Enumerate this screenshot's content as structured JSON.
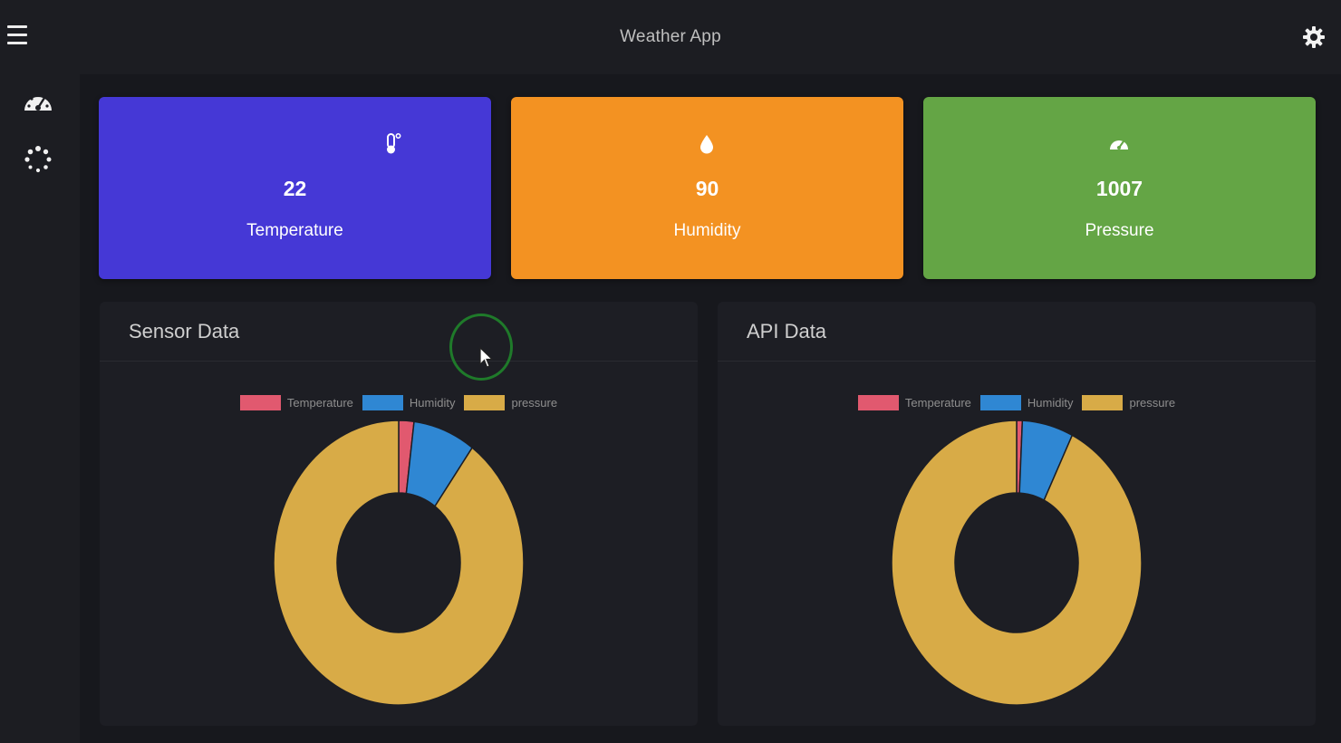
{
  "header": {
    "title": "Weather App",
    "menu_icon": "hamburger-menu-icon",
    "settings_icon": "gear-icon"
  },
  "sidebar": {
    "items": [
      {
        "icon": "dashboard-gauge-icon"
      },
      {
        "icon": "spinner-icon"
      }
    ]
  },
  "cards": [
    {
      "icon": "thermometer-icon",
      "value": "22",
      "label": "Temperature",
      "color": "#4538d6"
    },
    {
      "icon": "water-drop-icon",
      "value": "90",
      "label": "Humidity",
      "color": "#f39222"
    },
    {
      "icon": "gauge-icon",
      "value": "1007",
      "label": "Pressure",
      "color": "#64a545"
    }
  ],
  "panels": [
    {
      "title": "Sensor Data"
    },
    {
      "title": "API Data"
    }
  ],
  "legend": [
    "Temperature",
    "Humidity",
    "pressure"
  ],
  "colors": {
    "temperature": "#e1596f",
    "humidity": "#2f87d3",
    "pressure": "#d8ab47"
  },
  "chart_data": [
    {
      "type": "pie",
      "title": "Sensor Data",
      "categories": [
        "Temperature",
        "Humidity",
        "pressure"
      ],
      "values": [
        22,
        90,
        1007
      ],
      "legend": "top"
    },
    {
      "type": "pie",
      "title": "API Data",
      "categories": [
        "Temperature",
        "Humidity",
        "pressure"
      ],
      "values": [
        8,
        72,
        1011
      ],
      "legend": "top"
    }
  ]
}
